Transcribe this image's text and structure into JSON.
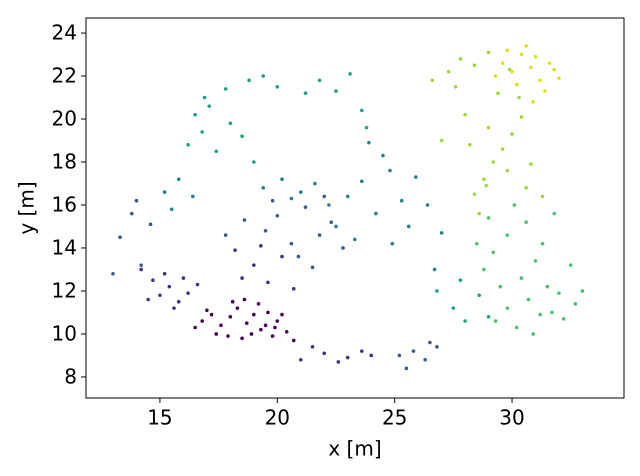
{
  "chart_data": {
    "type": "scatter",
    "x_label": "x [m]",
    "y_label": "y [m]",
    "xlim": [
      11.85,
      34.77
    ],
    "ylim": [
      7.02,
      24.7
    ],
    "xticks": [
      15,
      20,
      25,
      30
    ],
    "yticks": [
      8,
      10,
      12,
      14,
      16,
      18,
      20,
      22,
      24
    ],
    "grid": false,
    "series": [
      {
        "color": "#440154",
        "x": [
          16.8,
          17.2,
          17.6,
          18.0,
          18.3,
          18.7,
          19.0,
          19.3,
          19.6,
          20.0,
          20.4,
          17.9,
          18.5,
          19.2,
          19.8,
          16.5,
          17.4,
          18.1,
          18.9,
          19.5,
          20.2,
          20.7,
          17.0,
          18.6,
          19.9
        ],
        "y": [
          10.6,
          10.9,
          10.4,
          10.8,
          11.2,
          10.5,
          10.9,
          10.2,
          11.0,
          10.6,
          10.1,
          9.9,
          9.8,
          11.4,
          9.9,
          10.3,
          10.0,
          11.5,
          10.0,
          10.4,
          10.9,
          9.7,
          11.1,
          11.6,
          10.3
        ]
      },
      {
        "color": "#46317e",
        "x": [
          15.0,
          15.4,
          15.8,
          16.2,
          14.7,
          15.6,
          16.0,
          14.5,
          15.2,
          18.5,
          19.0,
          19.6,
          20.2,
          18.2,
          19.3,
          20.7,
          21.0,
          22.0,
          23.0,
          24.0,
          21.5,
          22.6,
          23.6,
          16.6,
          14.2
        ],
        "y": [
          11.8,
          12.2,
          11.5,
          11.9,
          12.5,
          11.2,
          12.6,
          11.6,
          12.8,
          12.6,
          13.2,
          12.4,
          13.6,
          13.9,
          14.1,
          12.1,
          8.8,
          9.1,
          8.9,
          9.0,
          9.4,
          8.7,
          9.2,
          12.3,
          13.0
        ]
      },
      {
        "color": "#365c8d",
        "x": [
          19.5,
          20.0,
          20.6,
          21.2,
          21.8,
          22.3,
          19.8,
          20.9,
          22.0,
          13.3,
          13.8,
          14.2,
          14.6,
          13.0,
          14.0,
          25.2,
          25.8,
          26.3,
          26.8,
          25.5,
          26.5,
          22.8,
          21.5,
          18.6,
          17.8
        ],
        "y": [
          14.8,
          15.5,
          14.2,
          15.9,
          14.6,
          15.2,
          16.2,
          13.6,
          16.4,
          14.5,
          15.6,
          13.2,
          15.1,
          12.8,
          16.2,
          9.0,
          9.2,
          8.8,
          9.4,
          8.4,
          9.6,
          14.0,
          13.1,
          15.3,
          14.6
        ]
      },
      {
        "color": "#277f8e",
        "x": [
          22.5,
          23.0,
          23.6,
          24.2,
          24.8,
          25.3,
          25.9,
          23.3,
          24.5,
          25.6,
          19.4,
          20.2,
          21.0,
          21.6,
          15.2,
          15.8,
          16.4,
          15.5,
          26.4,
          27.0,
          23.9,
          22.2,
          24.9,
          20.6,
          26.7
        ],
        "y": [
          15.0,
          16.4,
          17.1,
          15.6,
          17.6,
          16.2,
          17.3,
          14.4,
          18.3,
          15.0,
          16.8,
          17.2,
          16.6,
          17.0,
          16.6,
          17.2,
          16.4,
          15.8,
          16.0,
          14.7,
          18.9,
          16.0,
          14.2,
          16.3,
          13.0
        ]
      },
      {
        "color": "#1fa187",
        "x": [
          16.2,
          16.8,
          17.4,
          18.0,
          18.5,
          17.1,
          16.5,
          17.8,
          18.8,
          19.4,
          20.0,
          21.2,
          21.8,
          22.5,
          23.1,
          23.6,
          27.5,
          28.0,
          28.6,
          29.0,
          27.8,
          26.8,
          23.8,
          19.0,
          16.9
        ],
        "y": [
          18.8,
          19.4,
          18.5,
          19.8,
          19.2,
          20.6,
          20.2,
          21.4,
          21.8,
          22.0,
          21.5,
          21.2,
          21.8,
          21.3,
          22.1,
          20.4,
          11.2,
          10.6,
          11.8,
          10.8,
          12.5,
          12.0,
          19.6,
          18.0,
          21.0
        ]
      },
      {
        "color": "#4ac16d",
        "x": [
          29.3,
          29.8,
          30.2,
          30.7,
          31.2,
          31.7,
          32.2,
          32.7,
          29.5,
          30.4,
          31.0,
          29.2,
          29.8,
          30.6,
          31.3,
          31.8,
          32.5,
          33.0,
          28.5,
          30.1,
          31.5,
          29.0,
          30.9,
          32.0,
          28.8
        ],
        "y": [
          10.6,
          11.2,
          10.3,
          11.6,
          10.9,
          11.0,
          10.7,
          11.4,
          12.2,
          12.6,
          13.4,
          13.8,
          14.6,
          15.2,
          14.2,
          15.6,
          13.2,
          12.0,
          14.2,
          16.0,
          12.2,
          15.4,
          10.0,
          11.9,
          13.0
        ]
      },
      {
        "color": "#a0da39",
        "x": [
          28.4,
          28.8,
          29.2,
          29.6,
          30.0,
          30.4,
          28.2,
          29.0,
          29.8,
          30.6,
          27.3,
          27.8,
          28.4,
          29.0,
          26.6,
          27.6,
          28.0,
          30.8,
          29.4,
          28.6,
          31.3,
          27.0,
          29.9,
          30.3,
          28.9
        ],
        "y": [
          16.5,
          17.2,
          18.0,
          18.6,
          19.3,
          20.1,
          18.8,
          19.6,
          17.6,
          16.8,
          22.2,
          22.8,
          22.5,
          23.1,
          21.8,
          21.5,
          20.2,
          17.9,
          21.2,
          15.6,
          16.4,
          19.0,
          22.3,
          21.0,
          16.9
        ]
      },
      {
        "color": "#dde318",
        "x": [
          29.6,
          30.0,
          30.4,
          30.8,
          31.2,
          31.6,
          30.2,
          30.6,
          31.0,
          29.8,
          31.4,
          32.0,
          30.9,
          29.3,
          31.8
        ],
        "y": [
          22.6,
          22.2,
          23.0,
          22.4,
          21.8,
          22.6,
          21.6,
          23.4,
          22.9,
          23.2,
          21.3,
          21.9,
          20.8,
          22.0,
          22.3
        ]
      }
    ]
  }
}
